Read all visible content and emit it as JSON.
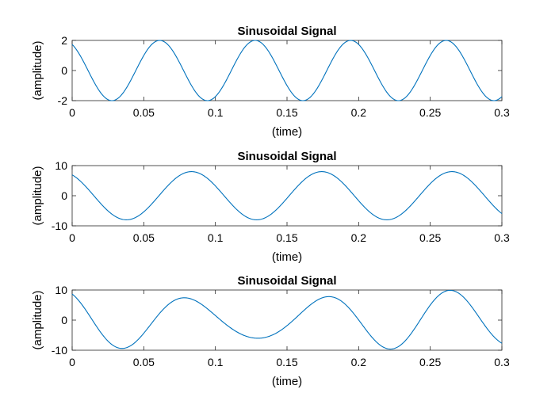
{
  "chart_data": [
    {
      "type": "line",
      "title": "Sinusoidal Signal",
      "xlabel": "(time)",
      "ylabel": "(amplitude)",
      "xlim": [
        0,
        0.3
      ],
      "ylim": [
        -2,
        2
      ],
      "xticks": [
        "0",
        "0.05",
        "0.1",
        "0.15",
        "0.2",
        "0.25",
        "0.3"
      ],
      "yticks": [
        "-2",
        "0",
        "2"
      ],
      "grid": false,
      "series": [
        {
          "color": "#0072BD",
          "signal": {
            "components": [
              {
                "amplitude": 2,
                "frequency_hz": 15,
                "phase_rad": 0.5236
              }
            ]
          }
        }
      ]
    },
    {
      "type": "line",
      "title": "Sinusoidal Signal",
      "xlabel": "(time)",
      "ylabel": "(amplitude)",
      "xlim": [
        0,
        0.3
      ],
      "ylim": [
        -10,
        10
      ],
      "xticks": [
        "0",
        "0.05",
        "0.1",
        "0.15",
        "0.2",
        "0.25",
        "0.3"
      ],
      "yticks": [
        "-10",
        "0",
        "10"
      ],
      "grid": false,
      "series": [
        {
          "color": "#0072BD",
          "signal": {
            "components": [
              {
                "amplitude": 8,
                "frequency_hz": 11,
                "phase_rad": 0.5236
              }
            ]
          }
        }
      ]
    },
    {
      "type": "line",
      "title": "Sinusoidal Signal",
      "xlabel": "(time)",
      "ylabel": "(amplitude)",
      "xlim": [
        0,
        0.3
      ],
      "ylim": [
        -10,
        10
      ],
      "xticks": [
        "0",
        "0.05",
        "0.1",
        "0.15",
        "0.2",
        "0.25",
        "0.3"
      ],
      "yticks": [
        "-10",
        "0",
        "10"
      ],
      "grid": false,
      "series": [
        {
          "color": "#0072BD",
          "signal": {
            "components": [
              {
                "amplitude": 8,
                "frequency_hz": 11,
                "phase_rad": 0.5236
              },
              {
                "amplitude": 2,
                "frequency_hz": 15,
                "phase_rad": 0.5236
              }
            ]
          }
        }
      ]
    }
  ]
}
